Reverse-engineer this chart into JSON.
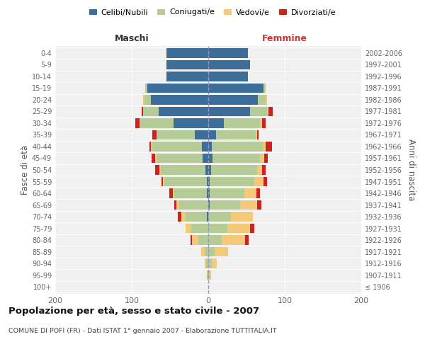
{
  "age_groups": [
    "100+",
    "95-99",
    "90-94",
    "85-89",
    "80-84",
    "75-79",
    "70-74",
    "65-69",
    "60-64",
    "55-59",
    "50-54",
    "45-49",
    "40-44",
    "35-39",
    "30-34",
    "25-29",
    "20-24",
    "15-19",
    "10-14",
    "5-9",
    "0-4"
  ],
  "birth_years": [
    "≤ 1906",
    "1907-1911",
    "1912-1916",
    "1917-1921",
    "1922-1926",
    "1927-1931",
    "1932-1936",
    "1937-1941",
    "1942-1946",
    "1947-1951",
    "1952-1956",
    "1957-1961",
    "1962-1966",
    "1967-1971",
    "1972-1976",
    "1977-1981",
    "1982-1986",
    "1987-1991",
    "1992-1996",
    "1997-2001",
    "2002-2006"
  ],
  "m_celibi": [
    0,
    0,
    0,
    0,
    0,
    0,
    2,
    0,
    2,
    2,
    4,
    7,
    8,
    18,
    45,
    65,
    75,
    80,
    55,
    55,
    55
  ],
  "m_coniugati": [
    0,
    2,
    3,
    5,
    13,
    22,
    28,
    38,
    42,
    55,
    58,
    60,
    65,
    50,
    45,
    20,
    8,
    2,
    0,
    0,
    0
  ],
  "m_vedovi": [
    0,
    0,
    2,
    4,
    8,
    8,
    5,
    4,
    2,
    2,
    2,
    2,
    2,
    0,
    0,
    0,
    2,
    0,
    0,
    0,
    0
  ],
  "m_divorziati": [
    0,
    0,
    0,
    0,
    2,
    0,
    5,
    2,
    5,
    2,
    5,
    5,
    2,
    5,
    5,
    2,
    0,
    0,
    0,
    0,
    0
  ],
  "f_nubili": [
    0,
    0,
    0,
    0,
    0,
    0,
    0,
    2,
    2,
    2,
    4,
    6,
    5,
    10,
    20,
    55,
    65,
    72,
    52,
    55,
    52
  ],
  "f_coniugate": [
    0,
    2,
    5,
    8,
    18,
    25,
    30,
    40,
    45,
    58,
    60,
    62,
    67,
    52,
    48,
    22,
    10,
    3,
    0,
    0,
    0
  ],
  "f_vedove": [
    0,
    2,
    6,
    18,
    30,
    30,
    28,
    22,
    16,
    12,
    6,
    5,
    3,
    2,
    2,
    2,
    2,
    0,
    0,
    0,
    0
  ],
  "f_divorziate": [
    0,
    0,
    0,
    0,
    5,
    5,
    0,
    5,
    5,
    5,
    5,
    5,
    8,
    2,
    5,
    5,
    0,
    0,
    0,
    0,
    0
  ],
  "colors": {
    "celibi": "#3d6e99",
    "coniugati": "#b5cc96",
    "vedovi": "#f5c97a",
    "divorziati": "#cc2222"
  },
  "xlim": 200,
  "title": "Popolazione per età, sesso e stato civile - 2007",
  "subtitle": "COMUNE DI POFI (FR) - Dati ISTAT 1° gennaio 2007 - Elaborazione TUTTITALIA.IT",
  "ylabel_left": "Fasce di età",
  "ylabel_right": "Anni di nascita",
  "xlabel_left": "Maschi",
  "xlabel_right": "Femmine",
  "legend_labels": [
    "Celibi/Nubili",
    "Coniugati/e",
    "Vedovi/e",
    "Divorziati/e"
  ],
  "bg_color": "#f0f0f0"
}
